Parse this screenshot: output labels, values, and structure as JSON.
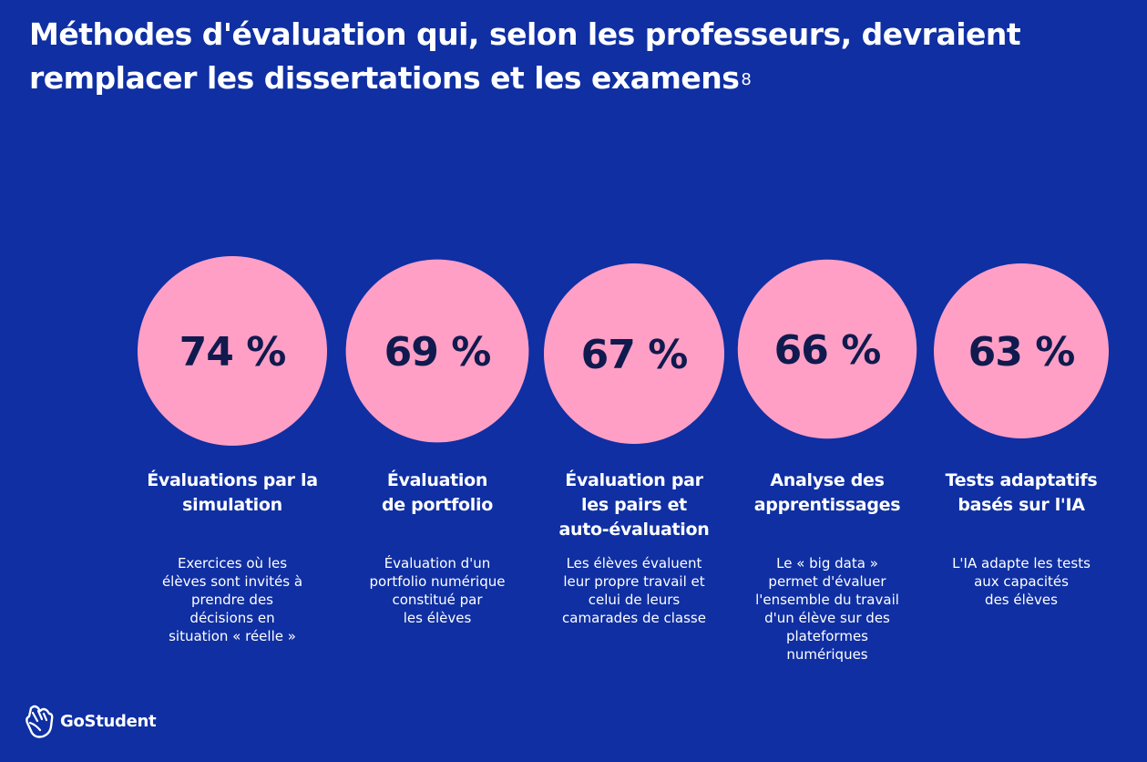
{
  "title": {
    "text": "Méthodes d'évaluation qui, selon les professeurs, devraient remplacer les dissertations et les examens",
    "footnote": "8"
  },
  "colors": {
    "background": "#0f2fa3",
    "circle": "#ff9fc5",
    "value_text": "#101a4e",
    "text": "#ffffff"
  },
  "chart_data": {
    "type": "bubble",
    "unit": "%",
    "items": [
      {
        "value": 74,
        "value_label": "74 %",
        "title": "Évaluations par la\nsimulation",
        "description": "Exercices où les\nélèves sont invités à\nprendre des\ndécisions en\nsituation « réelle »"
      },
      {
        "value": 69,
        "value_label": "69 %",
        "title": "Évaluation\nde portfolio",
        "description": "Évaluation d'un\nportfolio numérique\nconstitué par\nles élèves"
      },
      {
        "value": 67,
        "value_label": "67 %",
        "title": "Évaluation par\nles pairs et\nauto-évaluation",
        "description": "Les élèves évaluent\nleur propre travail et\ncelui de leurs\ncamarades de classe"
      },
      {
        "value": 66,
        "value_label": "66 %",
        "title": "Analyse des\napprentissages",
        "description": "Le « big data »\npermet d'évaluer\nl'ensemble du travail\nd'un élève sur des\nplateformes\nnumériques"
      },
      {
        "value": 63,
        "value_label": "63 %",
        "title": "Tests adaptatifs\nbasés sur l'IA",
        "description": "L'IA adapte les tests\naux capacités\ndes élèves"
      }
    ]
  },
  "logo": {
    "icon": "gostudent-hand-icon",
    "text": "GoStudent"
  }
}
